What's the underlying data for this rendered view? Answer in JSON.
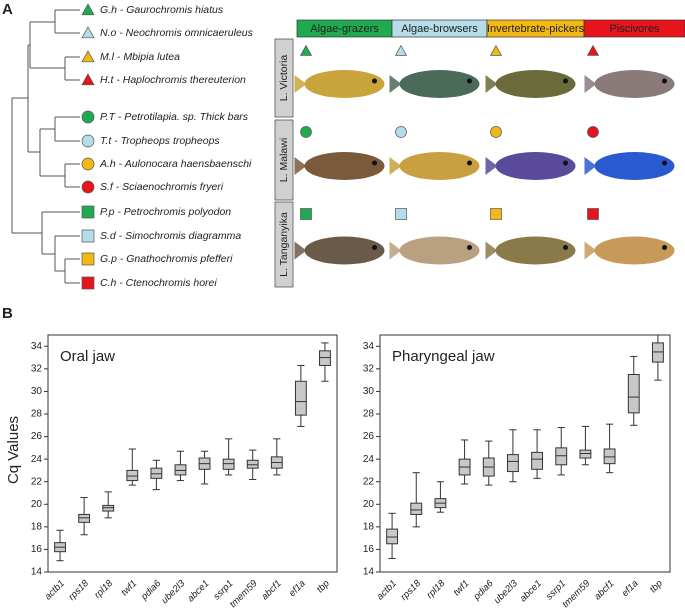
{
  "panel_labels": [
    "A",
    "B"
  ],
  "panel_a": {
    "groups": [
      {
        "name": "Algae-grazers",
        "color": "#1faa50"
      },
      {
        "name": "Algae-browsers",
        "color": "#b5dceb"
      },
      {
        "name": "Invertebrate-pickers",
        "color": "#f4b814"
      },
      {
        "name": "Piscivores",
        "color": "#e8141b"
      }
    ],
    "lakes": [
      {
        "name": "L. Victoria",
        "shape": "triangle"
      },
      {
        "name": "L. Malawi",
        "shape": "circle"
      },
      {
        "name": "L. Tanganyika",
        "shape": "square"
      }
    ],
    "species": [
      "G.h - Gaurochromis hiatus",
      "N.o - Neochromis omnicaeruleus",
      "M.l - Mbipia lutea",
      "H.t - Haplochromis thereuterion",
      "P.T - Petrotilapia. sp. Thick bars",
      "T.t - Tropheops tropheops",
      "A.h - Aulonocara haensbaenschi",
      "S.f - Sciaenochromis fryeri",
      "P.p - Petrochromis polyodon",
      "S.d - Simochromis diagramma",
      "G.p - Gnathochromis pfefferi",
      "C.h - Ctenochromis horei"
    ]
  },
  "chart_data": [
    {
      "type": "box",
      "title": "Oral jaw",
      "ylabel": "Cq Values",
      "categories": [
        "actb1",
        "rps18",
        "rpl18",
        "twf1",
        "pdia6",
        "ube2l3",
        "abce1",
        "ssrp1",
        "tmem59",
        "abcf1",
        "ef1a",
        "tbp"
      ],
      "whisker_low": [
        15.0,
        17.3,
        18.8,
        21.7,
        21.3,
        22.1,
        21.8,
        22.6,
        22.2,
        22.6,
        26.9,
        30.9
      ],
      "q1": [
        15.8,
        18.4,
        19.4,
        22.1,
        22.3,
        22.6,
        23.1,
        23.1,
        23.2,
        23.2,
        27.9,
        32.3
      ],
      "median": [
        16.2,
        18.8,
        19.7,
        22.5,
        22.7,
        23.0,
        23.6,
        23.6,
        23.5,
        23.7,
        29.1,
        33.0
      ],
      "q3": [
        16.6,
        19.1,
        19.9,
        23.0,
        23.2,
        23.5,
        24.1,
        24.0,
        23.9,
        24.2,
        30.9,
        33.6
      ],
      "whisker_high": [
        17.7,
        20.6,
        21.1,
        24.9,
        23.9,
        24.7,
        24.7,
        25.8,
        24.8,
        25.8,
        32.3,
        34.3
      ],
      "color": "#c8c8c8",
      "ylim": [
        14,
        35
      ],
      "yticks": [
        14,
        16,
        18,
        20,
        22,
        24,
        26,
        28,
        30,
        32,
        34
      ]
    },
    {
      "type": "box",
      "title": "Pharyngeal jaw",
      "categories": [
        "actb1",
        "rps18",
        "rpl18",
        "twf1",
        "pdia6",
        "ube2l3",
        "abce1",
        "ssrp1",
        "tmem59",
        "abcf1",
        "ef1a",
        "tbp"
      ],
      "whisker_low": [
        15.2,
        18.0,
        19.3,
        21.8,
        21.7,
        22.0,
        22.3,
        22.6,
        23.5,
        22.8,
        27.0,
        31.0
      ],
      "q1": [
        16.5,
        19.1,
        19.7,
        22.6,
        22.5,
        22.9,
        23.1,
        23.5,
        24.1,
        23.6,
        28.1,
        32.6
      ],
      "median": [
        17.1,
        19.5,
        20.1,
        23.3,
        23.3,
        23.8,
        24.0,
        24.3,
        24.5,
        24.2,
        29.5,
        33.5
      ],
      "q3": [
        17.8,
        20.1,
        20.5,
        24.0,
        24.1,
        24.4,
        24.6,
        25.0,
        24.8,
        24.9,
        31.5,
        34.3
      ],
      "whisker_high": [
        19.2,
        22.8,
        22.0,
        25.7,
        25.6,
        26.6,
        26.6,
        26.8,
        26.9,
        27.1,
        33.1,
        35.0
      ],
      "color": "#c8c8c8",
      "ylim": [
        14,
        35
      ],
      "yticks": [
        14,
        16,
        18,
        20,
        22,
        24,
        26,
        28,
        30,
        32,
        34
      ]
    }
  ]
}
